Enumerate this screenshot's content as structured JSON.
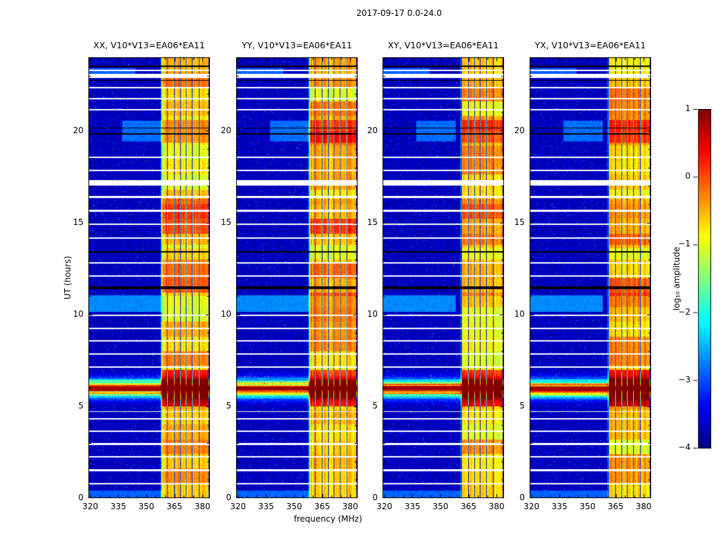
{
  "figure": {
    "title": "2017-09-17 0.0-24.0",
    "xlabel": "frequency (MHz)",
    "ylabel": "UT (hours)"
  },
  "chart_data": {
    "type": "heatmap",
    "title": "2017-09-17 0.0-24.0",
    "xlabel": "frequency (MHz)",
    "ylabel": "UT (hours)",
    "x_range_mhz": [
      319,
      384
    ],
    "y_range_hours": [
      0,
      24
    ],
    "x_ticks": [
      320,
      335,
      350,
      365,
      380
    ],
    "y_ticks": [
      0,
      5,
      10,
      15,
      20
    ],
    "colormap": "jet",
    "panels": [
      {
        "id": "XX",
        "title": "XX, V10*V13=EA06*EA11"
      },
      {
        "id": "YY",
        "title": "YY, V10*V13=EA06*EA11"
      },
      {
        "id": "XY",
        "title": "XY, V10*V13=EA06*EA11"
      },
      {
        "id": "YX",
        "title": "YX, V10*V13=EA06*EA11"
      }
    ],
    "colorbar": {
      "label": "log₁₀ amplitude",
      "ticks": [
        "1",
        "0",
        "−1",
        "−2",
        "−3",
        "−4"
      ],
      "tick_values": [
        1,
        0,
        -1,
        -2,
        -3,
        -4
      ],
      "range": [
        -4,
        1
      ]
    },
    "features": {
      "background_level": -3.7,
      "band_start_mhz": [
        357.5,
        357.5,
        360.5,
        360.5
      ],
      "band_end_mhz": 383.2,
      "rfi_notch_freqs_mhz": [
        361.4,
        364.9,
        368.3,
        371.3,
        374.7,
        378.2
      ],
      "burst_event": {
        "time_hours": 5.97,
        "sigma_hours": 0.45,
        "amplitude": 3.8
      },
      "haze_regions": [
        {
          "t0": 10.15,
          "t1": 11.05,
          "f0": 319,
          "f1": 358,
          "level": -2.7
        },
        {
          "t0": 19.4,
          "t1": 20.55,
          "f0": 337,
          "f1": 358,
          "level": -2.85
        },
        {
          "t0": 0.0,
          "t1": 0.4,
          "f0": 319,
          "f1": 384,
          "level": -2.9
        },
        {
          "t0": 23.05,
          "t1": 23.4,
          "f0": 319,
          "f1": 344,
          "level": -2.9
        }
      ],
      "band_boosts": [
        {
          "t0": 5.0,
          "t1": 7.0,
          "boost": 1.0
        },
        {
          "t0": 11.0,
          "t1": 13.0,
          "boost": 0.35
        },
        {
          "t0": 13.8,
          "t1": 16.3,
          "boost": 0.45
        },
        {
          "t0": 19.35,
          "t1": 20.6,
          "boost": 0.55
        },
        {
          "t0": 22.3,
          "t1": 23.0,
          "boost": 0.25
        }
      ],
      "white_gaps": [
        {
          "t": 0.78,
          "w": 0.08
        },
        {
          "t": 1.52,
          "w": 0.08
        },
        {
          "t": 2.24,
          "w": 0.08
        },
        {
          "t": 2.95,
          "w": 0.08
        },
        {
          "t": 3.65,
          "w": 0.08
        },
        {
          "t": 4.33,
          "w": 0.08
        },
        {
          "t": 4.72,
          "w": 0.06
        },
        {
          "t": 7.15,
          "w": 0.08
        },
        {
          "t": 7.85,
          "w": 0.09
        },
        {
          "t": 8.55,
          "w": 0.08
        },
        {
          "t": 9.25,
          "w": 0.09
        },
        {
          "t": 9.95,
          "w": 0.08
        },
        {
          "t": 12.1,
          "w": 0.09
        },
        {
          "t": 12.8,
          "w": 0.08
        },
        {
          "t": 14.15,
          "w": 0.09
        },
        {
          "t": 14.9,
          "w": 0.08
        },
        {
          "t": 15.65,
          "w": 0.09
        },
        {
          "t": 16.4,
          "w": 0.1
        },
        {
          "t": 17.15,
          "w": 0.3
        },
        {
          "t": 17.85,
          "w": 0.09
        },
        {
          "t": 18.55,
          "w": 0.09
        },
        {
          "t": 21.15,
          "w": 0.09
        },
        {
          "t": 21.75,
          "w": 0.09
        },
        {
          "t": 22.35,
          "w": 0.1
        },
        {
          "t": 22.98,
          "w": 0.2
        },
        {
          "t": 23.3,
          "w": 0.07
        }
      ],
      "black_lines": [
        {
          "t": 11.45,
          "w": 0.16
        },
        {
          "t": 13.4,
          "w": 0.09
        },
        {
          "t": 19.82,
          "w": 0.07
        },
        {
          "t": 20.15,
          "w": 0.06
        },
        {
          "t": 22.75,
          "w": 0.05
        },
        {
          "t": 23.52,
          "w": 0.08
        }
      ]
    }
  }
}
